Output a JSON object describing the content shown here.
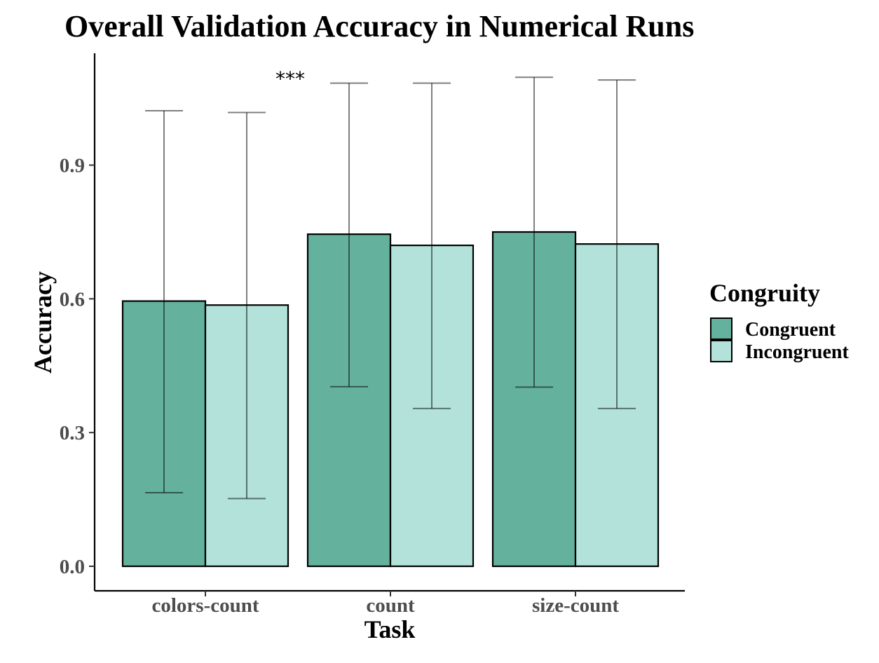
{
  "chart_data": {
    "type": "bar",
    "title": "Overall Validation Accuracy in Numerical Runs",
    "xlabel": "Task",
    "ylabel": "Accuracy",
    "categories": [
      "colors-count",
      "count",
      "size-count"
    ],
    "series": [
      {
        "name": "Congruent",
        "color": "#64b19d",
        "values": [
          0.595,
          0.745,
          0.75
        ],
        "error_low": [
          0.165,
          0.403,
          0.402
        ],
        "error_high": [
          1.022,
          1.084,
          1.097
        ]
      },
      {
        "name": "Incongruent",
        "color": "#b2e2d9",
        "values": [
          0.586,
          0.72,
          0.723
        ],
        "error_low": [
          0.152,
          0.354,
          0.354
        ],
        "error_high": [
          1.018,
          1.084,
          1.091
        ]
      }
    ],
    "ylim": [
      -0.055,
      1.15
    ],
    "yticks": [
      0.0,
      0.3,
      0.6,
      0.9
    ],
    "ytick_labels": [
      "0.0",
      "0.3",
      "0.6",
      "0.9"
    ],
    "legend": {
      "title": "Congruity",
      "position": "right"
    },
    "annotations": [
      {
        "text": "***",
        "x_between": [
          "colors-count",
          "count"
        ],
        "y": 1.11
      }
    ],
    "grid": false
  }
}
